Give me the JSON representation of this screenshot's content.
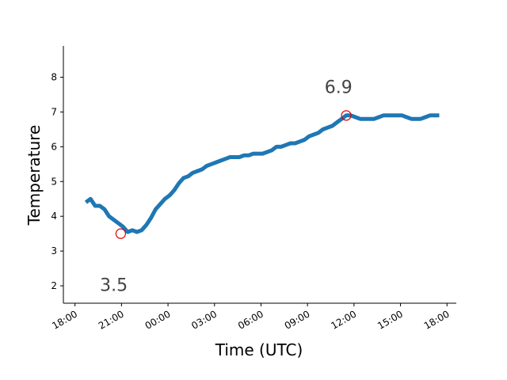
{
  "chart_data": {
    "type": "line",
    "xlabel": "Time (UTC)",
    "ylabel": "Temperature",
    "x_unit": "hours",
    "x_ticks": [
      {
        "value": 0,
        "label": "18:00"
      },
      {
        "value": 3,
        "label": "21:00"
      },
      {
        "value": 6,
        "label": "00:00"
      },
      {
        "value": 9,
        "label": "03:00"
      },
      {
        "value": 12,
        "label": "06:00"
      },
      {
        "value": 15,
        "label": "09:00"
      },
      {
        "value": 18,
        "label": "12:00"
      },
      {
        "value": 21,
        "label": "15:00"
      },
      {
        "value": 24,
        "label": "18:00"
      }
    ],
    "y_ticks": [
      2,
      3,
      4,
      5,
      6,
      7,
      8
    ],
    "xlim": [
      -0.75,
      24.6
    ],
    "ylim": [
      1.5,
      8.9
    ],
    "grid": false,
    "series": [
      {
        "color": "#1f77b4",
        "x": [
          0.7,
          1.0,
          1.3,
          1.6,
          1.9,
          2.2,
          2.5,
          2.8,
          3.1,
          3.4,
          3.7,
          4.0,
          4.3,
          4.6,
          4.9,
          5.2,
          5.5,
          5.8,
          6.1,
          6.4,
          6.7,
          7.0,
          7.3,
          7.6,
          7.9,
          8.2,
          8.5,
          8.8,
          9.1,
          9.4,
          9.7,
          10.0,
          10.3,
          10.6,
          10.9,
          11.2,
          11.5,
          11.8,
          12.1,
          12.4,
          12.7,
          13.0,
          13.3,
          13.6,
          13.9,
          14.2,
          14.5,
          14.8,
          15.1,
          15.4,
          15.7,
          16.0,
          16.3,
          16.6,
          16.9,
          17.2,
          17.5,
          17.8,
          18.1,
          18.4,
          18.7,
          19.0,
          19.3,
          19.6,
          19.9,
          20.2,
          20.5,
          20.8,
          21.1,
          21.4,
          21.7,
          22.0,
          22.3,
          22.6,
          22.9,
          23.2,
          23.5
        ],
        "y": [
          4.4,
          4.5,
          4.3,
          4.3,
          4.2,
          4.0,
          3.9,
          3.8,
          3.7,
          3.55,
          3.6,
          3.55,
          3.6,
          3.75,
          3.95,
          4.2,
          4.35,
          4.5,
          4.6,
          4.75,
          4.95,
          5.1,
          5.15,
          5.25,
          5.3,
          5.35,
          5.45,
          5.5,
          5.55,
          5.6,
          5.65,
          5.7,
          5.7,
          5.7,
          5.75,
          5.75,
          5.8,
          5.8,
          5.8,
          5.85,
          5.9,
          6.0,
          6.0,
          6.05,
          6.1,
          6.1,
          6.15,
          6.2,
          6.3,
          6.35,
          6.4,
          6.5,
          6.55,
          6.6,
          6.7,
          6.8,
          6.9,
          6.9,
          6.85,
          6.8,
          6.8,
          6.8,
          6.8,
          6.85,
          6.9,
          6.9,
          6.9,
          6.9,
          6.9,
          6.85,
          6.8,
          6.8,
          6.8,
          6.85,
          6.9,
          6.9,
          6.9
        ]
      }
    ],
    "annotations": [
      {
        "x": 2.95,
        "y": 3.5,
        "label": "3.5",
        "text_x": 2.5,
        "text_y": 1.85
      },
      {
        "x": 17.5,
        "y": 6.9,
        "label": "6.9",
        "text_x": 17.0,
        "text_y": 7.55
      }
    ]
  }
}
